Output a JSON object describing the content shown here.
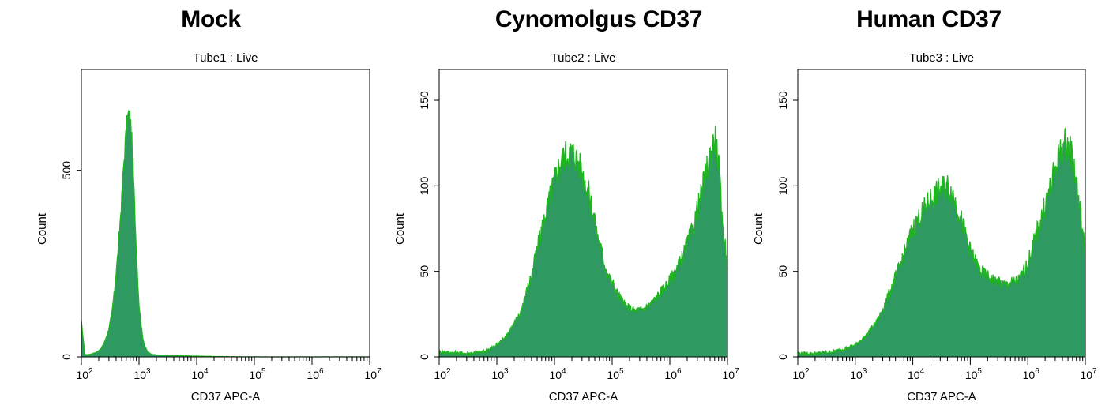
{
  "chart_data": [
    {
      "type": "area",
      "title": "Mock",
      "subtitle": "Tube1 : Live",
      "xlabel": "CD37 APC-A",
      "ylabel": "Count",
      "xscale": "log",
      "xlim": [
        100,
        10000000
      ],
      "ylim": [
        0,
        770
      ],
      "yticks": [
        0,
        500
      ],
      "xtick_base": "10",
      "xtick_exponents": [
        "2",
        "3",
        "4",
        "5",
        "6",
        "7"
      ],
      "fill_color": "#2e9960",
      "line_color": "#1fb51f",
      "series": [
        {
          "x": [
            100,
            115,
            130,
            150,
            180,
            220,
            260,
            300,
            340,
            380,
            420,
            460,
            500,
            540,
            580,
            620,
            660,
            700,
            740,
            780,
            830,
            880,
            940,
            1000,
            1080,
            1150,
            1250,
            1400,
            1600,
            2000,
            3000,
            5000,
            10000,
            20000,
            100000,
            10000000
          ],
          "y": [
            95,
            6,
            6,
            8,
            12,
            22,
            45,
            75,
            120,
            185,
            260,
            340,
            420,
            510,
            580,
            630,
            652,
            640,
            600,
            520,
            420,
            320,
            220,
            140,
            90,
            55,
            30,
            15,
            8,
            5,
            4,
            3,
            2,
            1,
            0,
            0
          ]
        }
      ]
    },
    {
      "type": "area",
      "title": "Cynomolgus CD37",
      "subtitle": "Tube2 : Live",
      "xlabel": "CD37 APC-A",
      "ylabel": "Count",
      "xscale": "log",
      "xlim": [
        100,
        10000000
      ],
      "ylim": [
        0,
        168
      ],
      "yticks": [
        0,
        50,
        100,
        150
      ],
      "xtick_base": "10",
      "xtick_exponents": [
        "2",
        "3",
        "4",
        "5",
        "6",
        "7"
      ],
      "fill_color": "#2e9960",
      "line_color": "#1fb51f",
      "series": [
        {
          "x": [
            100,
            300,
            600,
            1000,
            1500,
            2500,
            4000,
            6000,
            9000,
            12000,
            15000,
            20000,
            25000,
            30000,
            40000,
            55000,
            80000,
            120000,
            170000,
            250000,
            350000,
            500000,
            700000,
            1000000,
            1500000,
            2500000,
            3500000,
            5000000,
            6000000,
            7000000,
            8000000,
            10000000
          ],
          "y": [
            3,
            2,
            3,
            7,
            13,
            25,
            48,
            75,
            98,
            112,
            118,
            120,
            115,
            108,
            95,
            72,
            50,
            38,
            30,
            27,
            28,
            32,
            38,
            45,
            55,
            75,
            95,
            118,
            128,
            115,
            80,
            55
          ]
        }
      ]
    },
    {
      "type": "area",
      "title": "Human CD37",
      "subtitle": "Tube3 : Live",
      "xlabel": "CD37 APC-A",
      "ylabel": "Count",
      "xscale": "log",
      "xlim": [
        100,
        10000000
      ],
      "ylim": [
        0,
        168
      ],
      "yticks": [
        0,
        50,
        100,
        150
      ],
      "xtick_base": "10",
      "xtick_exponents": [
        "2",
        "3",
        "4",
        "5",
        "6",
        "7"
      ],
      "fill_color": "#2e9960",
      "line_color": "#1fb51f",
      "series": [
        {
          "x": [
            100,
            200,
            400,
            700,
            1000,
            1500,
            2500,
            4000,
            7000,
            10000,
            15000,
            20000,
            30000,
            40000,
            50000,
            70000,
            100000,
            150000,
            250000,
            400000,
            700000,
            1000000,
            1500000,
            2500000,
            3500000,
            4500000,
            6000000,
            8000000,
            10000000
          ],
          "y": [
            2,
            2,
            3,
            5,
            7,
            12,
            22,
            38,
            60,
            75,
            85,
            92,
            98,
            100,
            95,
            80,
            62,
            50,
            45,
            42,
            45,
            55,
            75,
            100,
            118,
            125,
            118,
            88,
            60
          ]
        }
      ]
    }
  ]
}
